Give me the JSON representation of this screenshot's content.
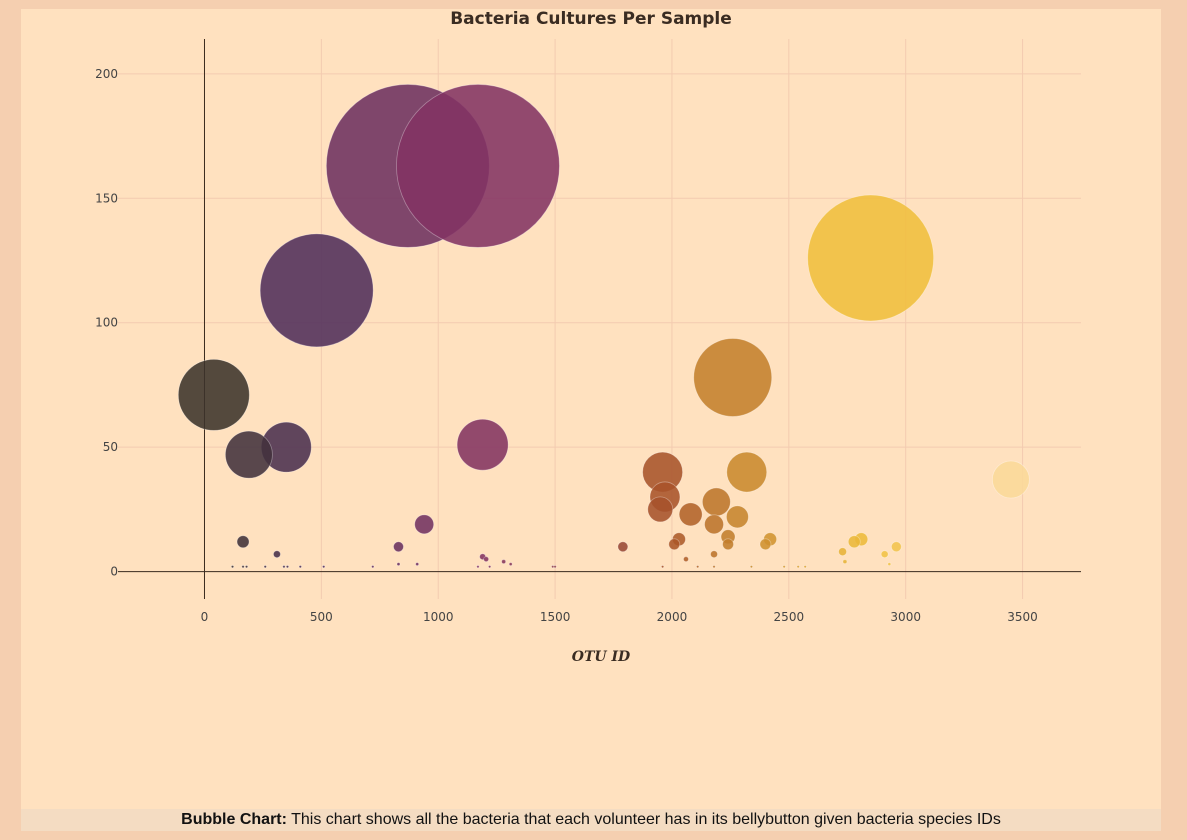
{
  "caption": {
    "bold": "Bubble Chart:",
    "text": "This chart shows all the bacteria that each volunteer has in its bellybutton given bacteria species IDs"
  },
  "chart_data": {
    "type": "scatter",
    "title": "Bacteria Cultures Per Sample",
    "xlabel": "OTU ID",
    "ylabel": "",
    "xlim": [
      -370,
      3750
    ],
    "ylim": [
      -11,
      214
    ],
    "xticks": [
      0,
      500,
      1000,
      1500,
      2000,
      2500,
      3000,
      3500
    ],
    "yticks": [
      0,
      50,
      100,
      150,
      200
    ],
    "grid": true,
    "marker_size_by": "value",
    "colorscale": "otu_id",
    "series": [
      {
        "x": [
          40,
          190,
          350,
          480,
          870,
          940,
          1170,
          1190,
          1960,
          1970,
          1950,
          2080,
          2190,
          2180,
          2280,
          2260,
          2320,
          2850,
          3450,
          165,
          310,
          830,
          1190,
          1790,
          2010,
          2030,
          2240,
          2240,
          2400,
          2420,
          2730,
          2780,
          2810,
          2910,
          2960,
          2180,
          2060,
          1205,
          1280,
          1310,
          910,
          830,
          120,
          165,
          180,
          260,
          340,
          355,
          410,
          510,
          720,
          1170,
          1220,
          1490,
          1500,
          1960,
          2110,
          2180,
          2340,
          2480,
          2540,
          2570,
          2740,
          2930
        ],
        "y": [
          71,
          47,
          50,
          113,
          163,
          19,
          163,
          51,
          40,
          30,
          25,
          23,
          28,
          19,
          22,
          78,
          40,
          126,
          37,
          12,
          7,
          10,
          6,
          10,
          11,
          13,
          14,
          11,
          11,
          13,
          8,
          12,
          13,
          7,
          10,
          7,
          5,
          5,
          4,
          3,
          3,
          3,
          2,
          2,
          2,
          2,
          2,
          2,
          2,
          2,
          2,
          2,
          2,
          2,
          2,
          2,
          2,
          2,
          2,
          2,
          2,
          2,
          4,
          3
        ],
        "marker_size": [
          71,
          47,
          50,
          113,
          163,
          19,
          163,
          51,
          40,
          30,
          25,
          23,
          28,
          19,
          22,
          78,
          40,
          126,
          37,
          12,
          7,
          10,
          6,
          10,
          11,
          13,
          14,
          11,
          11,
          13,
          8,
          12,
          13,
          7,
          10,
          7,
          5,
          5,
          4,
          3,
          3,
          3,
          2,
          2,
          2,
          2,
          2,
          2,
          2,
          2,
          2,
          2,
          2,
          2,
          2,
          2,
          2,
          2,
          2,
          2,
          2,
          2,
          4,
          3
        ],
        "note": ""
      }
    ],
    "colors": {
      "background": "#ffe1bf",
      "page": "#f5cfb0",
      "grid": "#f3cbb0",
      "axis": "#3a2a1e"
    }
  }
}
